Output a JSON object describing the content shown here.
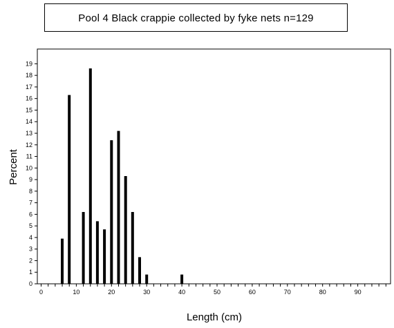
{
  "chart_data": {
    "type": "bar",
    "title": "Pool 4 Black crappie collected by fyke nets   n=129",
    "xlabel": "Length (cm)",
    "ylabel": "Percent",
    "xlim": [
      0,
      98
    ],
    "ylim": [
      0,
      19.5
    ],
    "x_ticks_labeled": [
      0,
      10,
      20,
      30,
      40,
      50,
      60,
      70,
      80,
      90
    ],
    "x_minor_step": 2,
    "y_ticks": [
      0,
      1,
      2,
      3,
      4,
      5,
      6,
      7,
      8,
      9,
      10,
      11,
      12,
      13,
      14,
      15,
      16,
      17,
      18,
      19
    ],
    "grid": false,
    "bars": [
      {
        "x": 6,
        "value": 3.9
      },
      {
        "x": 8,
        "value": 16.3
      },
      {
        "x": 12,
        "value": 6.2
      },
      {
        "x": 14,
        "value": 18.6
      },
      {
        "x": 16,
        "value": 5.4
      },
      {
        "x": 18,
        "value": 4.7
      },
      {
        "x": 20,
        "value": 12.4
      },
      {
        "x": 22,
        "value": 13.2
      },
      {
        "x": 24,
        "value": 9.3
      },
      {
        "x": 26,
        "value": 6.2
      },
      {
        "x": 28,
        "value": 2.3
      },
      {
        "x": 30,
        "value": 0.8
      },
      {
        "x": 40,
        "value": 0.8
      }
    ]
  }
}
